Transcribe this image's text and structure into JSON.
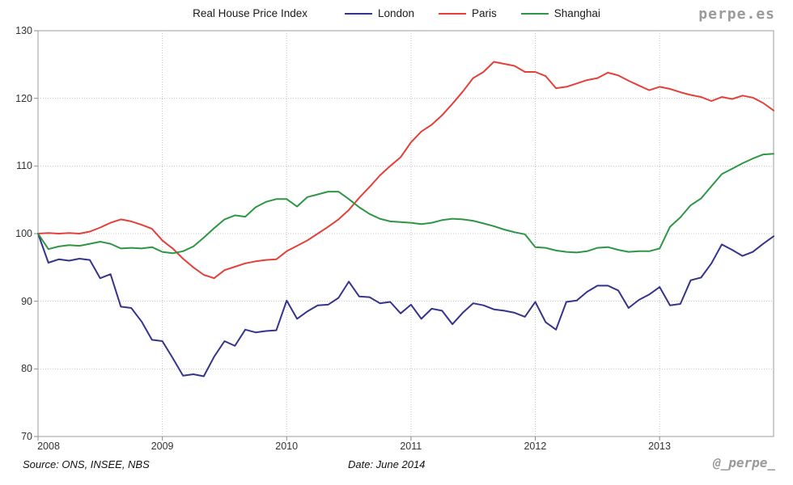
{
  "header": {
    "title": "Real House Price Index",
    "brand": "perpe.es",
    "legend": [
      {
        "label": "London",
        "color": "#34348C"
      },
      {
        "label": "Paris",
        "color": "#E2413A"
      },
      {
        "label": "Shanghai",
        "color": "#2E9644"
      }
    ]
  },
  "footer": {
    "source": "Source: ONS, INSEE, NBS",
    "date": "Date: June 2014",
    "handle": "@_perpe_"
  },
  "chart_data": {
    "type": "line",
    "title": "Real House Price Index",
    "xlabel": "",
    "ylabel": "",
    "x_unit": "month",
    "x_range": [
      "2008-01",
      "2013-12"
    ],
    "points_per_series": 72,
    "x_tick_labels": [
      "2008",
      "2009",
      "2010",
      "2011",
      "2012",
      "2013"
    ],
    "x_tick_months": [
      0,
      12,
      24,
      36,
      48,
      60
    ],
    "y_ticks": [
      70,
      80,
      90,
      100,
      110,
      120,
      130
    ],
    "ylim": [
      70,
      130
    ],
    "grid": "dotted",
    "legend_position": "top",
    "series": [
      {
        "name": "London",
        "color": "#34348C",
        "values": [
          100,
          95.7,
          96.2,
          96,
          96.3,
          96.1,
          93.4,
          94,
          89.2,
          89,
          87,
          84.3,
          84.1,
          81.6,
          79,
          79.2,
          78.9,
          81.8,
          84.1,
          83.4,
          85.8,
          85.4,
          85.6,
          85.7,
          90.1,
          87.4,
          88.5,
          89.4,
          89.5,
          90.5,
          92.9,
          90.7,
          90.6,
          89.7,
          89.9,
          88.2,
          89.5,
          87.4,
          88.9,
          88.6,
          86.6,
          88.3,
          89.7,
          89.4,
          88.8,
          88.6,
          88.3,
          87.7,
          89.9,
          86.9,
          85.8,
          89.9,
          90.1,
          91.4,
          92.3,
          92.3,
          91.6,
          89,
          90.2,
          91,
          92.1,
          89.4,
          89.6,
          93.1,
          93.5,
          95.6,
          98.4,
          97.6,
          96.7,
          97.3,
          98.5,
          99.6
        ]
      },
      {
        "name": "Paris",
        "color": "#E2413A",
        "values": [
          100,
          100.1,
          100,
          100.1,
          100,
          100.3,
          100.9,
          101.6,
          102.1,
          101.8,
          101.3,
          100.7,
          99,
          97.8,
          96.3,
          95,
          93.9,
          93.4,
          94.6,
          95.1,
          95.6,
          95.9,
          96.1,
          96.2,
          97.4,
          98.2,
          99,
          100,
          101,
          102.1,
          103.5,
          105.3,
          106.9,
          108.6,
          110,
          111.3,
          113.5,
          115.1,
          116.1,
          117.5,
          119.2,
          121,
          123,
          123.9,
          125.4,
          125.1,
          124.8,
          123.9,
          123.9,
          123.3,
          121.5,
          121.7,
          122.2,
          122.7,
          123,
          123.8,
          123.4,
          122.6,
          121.9,
          121.2,
          121.7,
          121.4,
          120.9,
          120.5,
          120.2,
          119.6,
          120.2,
          119.9,
          120.4,
          120.1,
          119.3,
          118.2
        ]
      },
      {
        "name": "Shanghai",
        "color": "#2E9644",
        "values": [
          100,
          97.7,
          98.1,
          98.3,
          98.2,
          98.5,
          98.8,
          98.5,
          97.8,
          97.9,
          97.8,
          98,
          97.3,
          97.1,
          97.4,
          98.1,
          99.4,
          100.8,
          102.1,
          102.7,
          102.5,
          103.9,
          104.7,
          105.1,
          105.1,
          104,
          105.4,
          105.8,
          106.2,
          106.2,
          105.1,
          103.9,
          102.9,
          102.2,
          101.8,
          101.7,
          101.6,
          101.4,
          101.6,
          102,
          102.2,
          102.1,
          101.9,
          101.5,
          101.1,
          100.6,
          100.2,
          99.9,
          98,
          97.9,
          97.5,
          97.3,
          97.2,
          97.4,
          97.9,
          98,
          97.6,
          97.3,
          97.4,
          97.4,
          97.8,
          101,
          102.4,
          104.2,
          105.2,
          107,
          108.8,
          109.6,
          110.4,
          111.1,
          111.7,
          111.8
        ]
      }
    ]
  }
}
